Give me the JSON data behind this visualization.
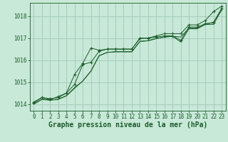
{
  "bg_color": "#c8e8d8",
  "grid_color": "#a0c8b8",
  "line_color": "#1a5c2a",
  "xlabel": "Graphe pression niveau de la mer (hPa)",
  "xlabel_color": "#1a5c2a",
  "xlim": [
    -0.5,
    23.5
  ],
  "ylim": [
    1013.7,
    1018.6
  ],
  "yticks": [
    1014,
    1015,
    1016,
    1017,
    1018
  ],
  "xticks": [
    0,
    1,
    2,
    3,
    4,
    5,
    6,
    7,
    8,
    9,
    10,
    11,
    12,
    13,
    14,
    15,
    16,
    17,
    18,
    19,
    20,
    21,
    22,
    23
  ],
  "series_marked1": [
    1014.05,
    1014.3,
    1014.2,
    1014.35,
    1014.5,
    1015.35,
    1015.85,
    1016.55,
    1016.45,
    1016.5,
    1016.5,
    1016.5,
    1016.5,
    1016.98,
    1017.0,
    1017.05,
    1017.1,
    1017.1,
    1016.9,
    1017.5,
    1017.5,
    1017.65,
    1017.7,
    1018.35
  ],
  "series_marked2": [
    1014.1,
    1014.3,
    1014.25,
    1014.3,
    1014.5,
    1014.9,
    1015.8,
    1015.9,
    1016.4,
    1016.5,
    1016.5,
    1016.5,
    1016.5,
    1017.0,
    1017.0,
    1017.1,
    1017.2,
    1017.2,
    1017.2,
    1017.6,
    1017.6,
    1017.8,
    1018.2,
    1018.45
  ],
  "series_plain1": [
    1014.0,
    1014.22,
    1014.18,
    1014.22,
    1014.38,
    1014.75,
    1015.05,
    1015.5,
    1016.2,
    1016.35,
    1016.38,
    1016.38,
    1016.38,
    1016.85,
    1016.88,
    1016.98,
    1017.05,
    1017.08,
    1017.05,
    1017.45,
    1017.45,
    1017.62,
    1017.72,
    1018.28
  ],
  "series_plain2": [
    1014.0,
    1014.22,
    1014.18,
    1014.22,
    1014.38,
    1014.72,
    1015.05,
    1015.5,
    1016.2,
    1016.35,
    1016.38,
    1016.38,
    1016.38,
    1016.85,
    1016.88,
    1016.98,
    1017.05,
    1017.08,
    1016.82,
    1017.42,
    1017.42,
    1017.62,
    1017.62,
    1018.28
  ],
  "font_size_tick": 5.5,
  "font_size_label": 7
}
